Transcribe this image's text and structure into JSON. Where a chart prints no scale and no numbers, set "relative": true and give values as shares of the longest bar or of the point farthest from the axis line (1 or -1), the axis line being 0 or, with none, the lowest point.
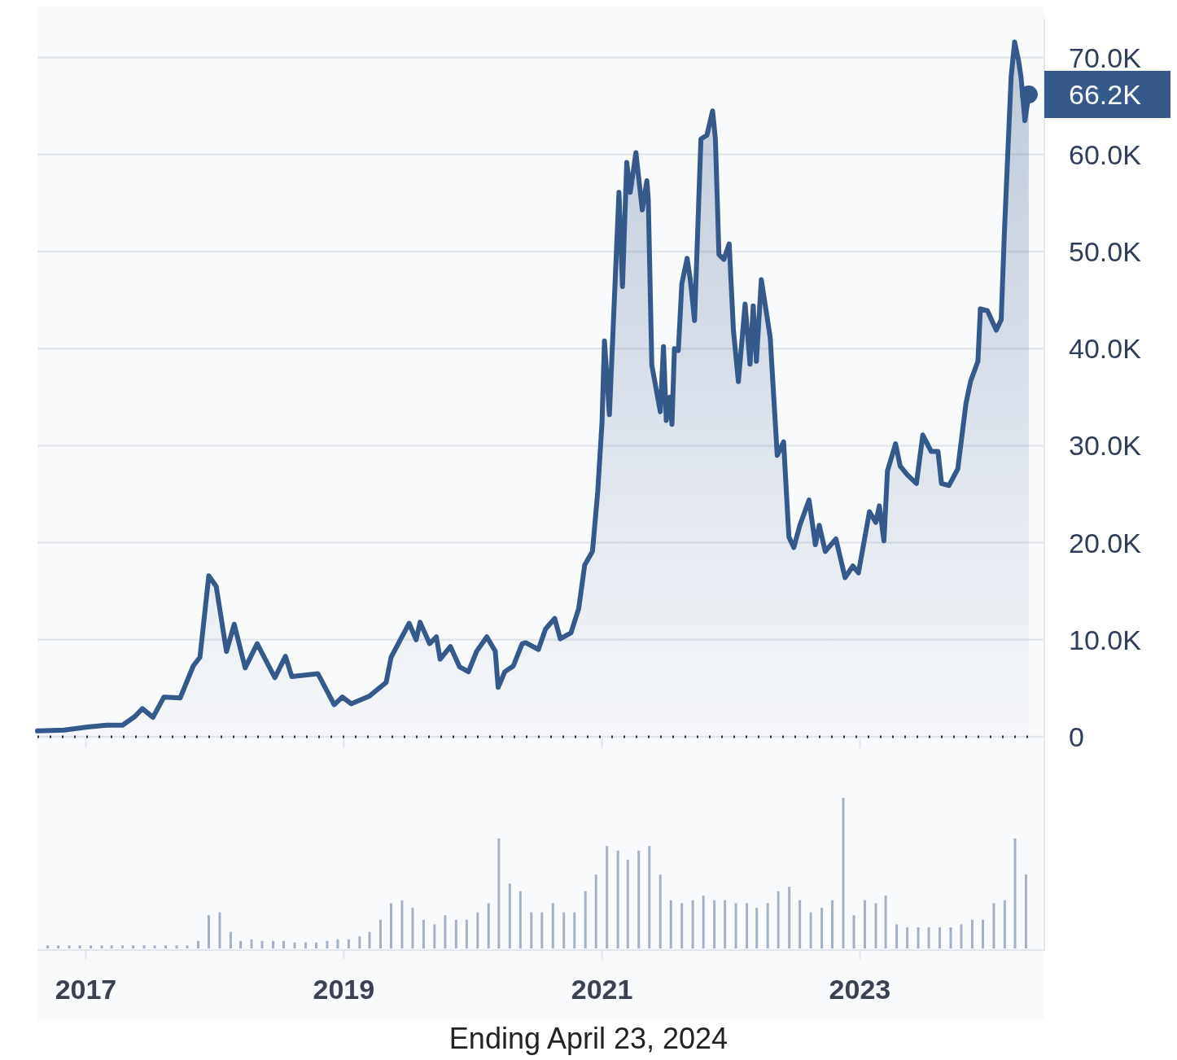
{
  "chart_data": [
    {
      "type": "area",
      "grid": "y",
      "tick_labels": "y",
      "xlim": [
        "2016-08-17",
        "2024-06-06"
      ],
      "ylim": [
        0,
        74000
      ],
      "xticks": [
        {
          "value": "2017-01-01",
          "label": null
        },
        {
          "value": "2019-01-01",
          "label": null
        },
        {
          "value": "2021-01-01",
          "label": null
        },
        {
          "value": "2023-01-01",
          "label": null
        }
      ],
      "yticks": [
        0,
        {
          "value": 10000,
          "label": "10.0K"
        },
        {
          "value": 20000,
          "label": "20.0K"
        },
        {
          "value": 30000,
          "label": "30.0K"
        },
        {
          "value": 40000,
          "label": "40.0K"
        },
        {
          "value": 50000,
          "label": "50.0K"
        },
        {
          "value": 60000,
          "label": "60.0K"
        },
        {
          "value": 70000,
          "label": "70.0K"
        }
      ],
      "annotations": [
        {
          "text": "66.2K",
          "x": "2024-04-23",
          "y": 66200
        }
      ],
      "series": [
        {
          "color": "#34598a",
          "x": [
            "2016-08-17",
            "2016-11-01",
            "2017-01-05",
            "2017-03-01",
            "2017-04-15",
            "2017-05-20",
            "2017-06-10",
            "2017-07-10",
            "2017-08-10",
            "2017-09-25",
            "2017-11-01",
            "2017-11-20",
            "2017-12-15",
            "2018-01-05",
            "2018-02-03",
            "2018-02-25",
            "2018-03-28",
            "2018-05-01",
            "2018-06-20",
            "2018-07-20",
            "2018-08-07",
            "2018-10-20",
            "2018-12-05",
            "2018-12-28",
            "2019-01-22",
            "2019-03-15",
            "2019-05-01",
            "2019-05-15",
            "2019-07-05",
            "2019-07-25",
            "2019-08-05",
            "2019-09-01",
            "2019-09-20",
            "2019-10-01",
            "2019-10-30",
            "2019-11-25",
            "2019-12-20",
            "2020-01-12",
            "2020-02-10",
            "2020-03-05",
            "2020-03-13",
            "2020-04-01",
            "2020-04-25",
            "2020-05-20",
            "2020-05-30",
            "2020-07-05",
            "2020-07-25",
            "2020-08-20",
            "2020-09-05",
            "2020-10-05",
            "2020-10-27",
            "2020-11-13",
            "2020-12-05",
            "2020-12-20",
            "2021-01-01",
            "2021-01-08",
            "2021-01-22",
            "2021-02-18",
            "2021-02-28",
            "2021-03-12",
            "2021-03-22",
            "2021-04-07",
            "2021-04-25",
            "2021-05-08",
            "2021-05-12",
            "2021-05-22",
            "2021-06-15",
            "2021-06-24",
            "2021-07-02",
            "2021-07-12",
            "2021-07-18",
            "2021-07-25",
            "2021-08-05",
            "2021-08-15",
            "2021-08-30",
            "2021-09-08",
            "2021-09-20",
            "2021-10-08",
            "2021-10-25",
            "2021-11-10",
            "2021-11-18",
            "2021-11-28",
            "2021-12-12",
            "2021-12-27",
            "2022-01-08",
            "2022-01-22",
            "2022-02-10",
            "2022-02-24",
            "2022-03-05",
            "2022-03-14",
            "2022-03-28",
            "2022-04-22",
            "2022-05-12",
            "2022-05-30",
            "2022-06-14",
            "2022-06-28",
            "2022-07-15",
            "2022-08-10",
            "2022-08-28",
            "2022-09-08",
            "2022-09-25",
            "2022-10-25",
            "2022-11-20",
            "2022-12-12",
            "2022-12-28",
            "2023-01-28",
            "2023-02-15",
            "2023-02-25",
            "2023-03-10",
            "2023-03-20",
            "2023-04-12",
            "2023-04-25",
            "2023-05-15",
            "2023-06-10",
            "2023-06-28",
            "2023-07-22",
            "2023-08-10",
            "2023-08-20",
            "2023-09-10",
            "2023-10-05",
            "2023-10-28",
            "2023-11-10",
            "2023-12-01",
            "2023-12-08",
            "2023-12-28",
            "2024-01-22",
            "2024-02-05",
            "2024-02-14",
            "2024-03-04",
            "2024-03-14",
            "2024-03-25",
            "2024-04-01",
            "2024-04-12",
            "2024-04-23"
          ],
          "values": [
            600,
            700,
            1000,
            1200,
            1200,
            2100,
            2900,
            2000,
            4100,
            4000,
            7300,
            8200,
            16600,
            15500,
            8800,
            11600,
            7100,
            9600,
            6100,
            8300,
            6200,
            6500,
            3300,
            4100,
            3400,
            4200,
            5600,
            8200,
            11700,
            10000,
            11800,
            9600,
            10300,
            8000,
            9300,
            7200,
            6700,
            8800,
            10300,
            8800,
            5100,
            6700,
            7300,
            9600,
            9700,
            9000,
            11100,
            12200,
            10100,
            10700,
            13200,
            17700,
            19100,
            25300,
            32400,
            40800,
            33200,
            56100,
            46400,
            59200,
            56100,
            60200,
            54300,
            57300,
            55400,
            38300,
            33500,
            40200,
            32600,
            35000,
            32200,
            40000,
            39800,
            46700,
            49300,
            47100,
            42900,
            61600,
            62000,
            64500,
            61600,
            49700,
            49200,
            50800,
            41900,
            36600,
            44600,
            38400,
            44400,
            38700,
            47100,
            41200,
            29000,
            30400,
            20600,
            19500,
            21800,
            24400,
            19800,
            21800,
            19100,
            20400,
            16400,
            17600,
            16900,
            23200,
            22100,
            23800,
            20200,
            27400,
            30200,
            27900,
            27000,
            26100,
            31100,
            29400,
            29400,
            26100,
            25900,
            27600,
            34300,
            36600,
            38700,
            44100,
            43900,
            41900,
            43000,
            52000,
            68000,
            71600,
            69700,
            68000,
            63500,
            66200
          ]
        }
      ]
    },
    {
      "type": "bar",
      "relative": true,
      "tick_labels": "x",
      "xlim": [
        "2016-08-17",
        "2024-06-06"
      ],
      "xticks": [
        {
          "value": "2017-01-01",
          "label": "2017"
        },
        {
          "value": "2019-01-01",
          "label": "2019"
        },
        {
          "value": "2021-01-01",
          "label": "2021"
        },
        {
          "value": "2023-01-01",
          "label": "2023"
        }
      ],
      "annotations": [
        "Ending April 23, 2024"
      ],
      "x": [
        "2016-09-15",
        "2016-10-15",
        "2016-11-15",
        "2016-12-15",
        "2017-01-15",
        "2017-02-15",
        "2017-03-15",
        "2017-04-15",
        "2017-05-15",
        "2017-06-15",
        "2017-07-15",
        "2017-08-15",
        "2017-09-15",
        "2017-10-15",
        "2017-11-15",
        "2017-12-15",
        "2018-01-15",
        "2018-02-15",
        "2018-03-15",
        "2018-04-15",
        "2018-05-15",
        "2018-06-15",
        "2018-07-15",
        "2018-08-15",
        "2018-09-15",
        "2018-10-15",
        "2018-11-15",
        "2018-12-15",
        "2019-01-15",
        "2019-02-15",
        "2019-03-15",
        "2019-04-15",
        "2019-05-15",
        "2019-06-15",
        "2019-07-15",
        "2019-08-15",
        "2019-09-15",
        "2019-10-15",
        "2019-11-15",
        "2019-12-15",
        "2020-01-15",
        "2020-02-15",
        "2020-03-15",
        "2020-04-15",
        "2020-05-15",
        "2020-06-15",
        "2020-07-15",
        "2020-08-15",
        "2020-09-15",
        "2020-10-15",
        "2020-11-15",
        "2020-12-15",
        "2021-01-15",
        "2021-02-15",
        "2021-03-15",
        "2021-04-15",
        "2021-05-15",
        "2021-06-15",
        "2021-07-15",
        "2021-08-15",
        "2021-09-15",
        "2021-10-15",
        "2021-11-15",
        "2021-12-15",
        "2022-01-15",
        "2022-02-15",
        "2022-03-15",
        "2022-04-15",
        "2022-05-15",
        "2022-06-15",
        "2022-07-15",
        "2022-08-15",
        "2022-09-15",
        "2022-10-15",
        "2022-11-15",
        "2022-12-15",
        "2023-01-15",
        "2023-02-15",
        "2023-03-15",
        "2023-04-15",
        "2023-05-15",
        "2023-06-15",
        "2023-07-15",
        "2023-08-15",
        "2023-09-15",
        "2023-10-15",
        "2023-11-15",
        "2023-12-15",
        "2024-01-15",
        "2024-02-15",
        "2024-03-15",
        "2024-04-15"
      ],
      "series": [
        {
          "color": "#a3b1c6",
          "values": [
            0.02,
            0.02,
            0.02,
            0.02,
            0.02,
            0.02,
            0.02,
            0.02,
            0.02,
            0.02,
            0.02,
            0.02,
            0.02,
            0.02,
            0.05,
            0.22,
            0.24,
            0.11,
            0.05,
            0.06,
            0.05,
            0.05,
            0.05,
            0.04,
            0.04,
            0.04,
            0.05,
            0.06,
            0.06,
            0.08,
            0.11,
            0.19,
            0.3,
            0.32,
            0.27,
            0.19,
            0.16,
            0.22,
            0.19,
            0.19,
            0.24,
            0.3,
            0.73,
            0.43,
            0.38,
            0.24,
            0.24,
            0.3,
            0.24,
            0.24,
            0.38,
            0.49,
            0.68,
            0.65,
            0.59,
            0.65,
            0.68,
            0.49,
            0.32,
            0.3,
            0.32,
            0.35,
            0.32,
            0.32,
            0.3,
            0.3,
            0.27,
            0.3,
            0.38,
            0.41,
            0.32,
            0.24,
            0.27,
            0.32,
            1,
            0.22,
            0.32,
            0.3,
            0.35,
            0.16,
            0.14,
            0.14,
            0.14,
            0.14,
            0.14,
            0.16,
            0.19,
            0.19,
            0.3,
            0.32,
            0.73,
            0.49
          ]
        }
      ]
    }
  ]
}
